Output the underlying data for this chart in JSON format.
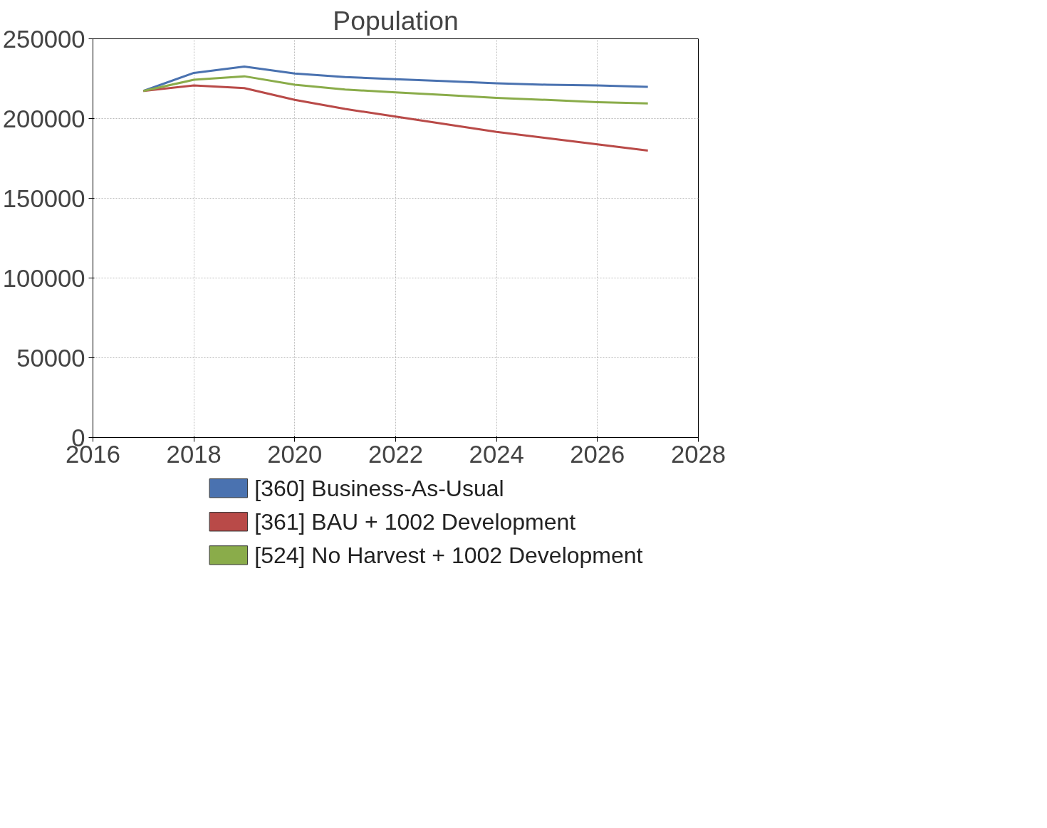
{
  "chart_data": {
    "type": "line",
    "title": "Population",
    "x": [
      2017,
      2018,
      2019,
      2020,
      2021,
      2022,
      2023,
      2024,
      2025,
      2026,
      2027
    ],
    "series": [
      {
        "name": "[360] Business-As-Usual",
        "color": "#4a72b0",
        "values": [
          217300,
          228600,
          232600,
          228200,
          226000,
          224700,
          223400,
          222100,
          221200,
          220800,
          219900
        ]
      },
      {
        "name": "[361] BAU + 1002 Development",
        "color": "#b94a48",
        "values": [
          217300,
          220800,
          219100,
          211700,
          206000,
          201200,
          196400,
          191600,
          187700,
          183800,
          179900
        ]
      },
      {
        "name": "[524] No Harvest + 1002 Development",
        "color": "#8aac4a",
        "values": [
          217300,
          224300,
          226500,
          221200,
          218200,
          216400,
          214700,
          213000,
          211700,
          210300,
          209500
        ]
      }
    ],
    "xlim": [
      2016,
      2028
    ],
    "xticks": [
      2016,
      2018,
      2020,
      2022,
      2024,
      2026,
      2028
    ],
    "ylim": [
      0,
      250000
    ],
    "yticks": [
      0,
      50000,
      100000,
      150000,
      200000,
      250000
    ],
    "grid": true,
    "legend": "bottom",
    "marker": "none",
    "line_style": "solid"
  }
}
